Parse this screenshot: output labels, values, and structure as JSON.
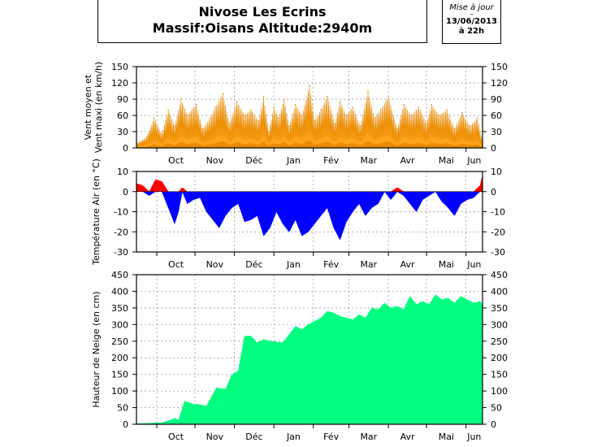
{
  "header": {
    "title_line1": "Nivose Les Ecrins",
    "title_line2": "Massif:Oisans Altitude:2940m"
  },
  "update": {
    "label": "Mise à jour",
    "dash": "–",
    "date": "13/06/2013",
    "time": "à 22h"
  },
  "months": [
    "Oct",
    "Nov",
    "Déc",
    "Jan",
    "Fév",
    "Mar",
    "Avr",
    "Mai",
    "Jun"
  ],
  "colors": {
    "wind": "#e88a00",
    "wind_max": "#ffa31a",
    "temp_pos": "#ff0000",
    "temp_neg": "#0000ff",
    "snow": "#00ff80",
    "grid": "#8c8c8c"
  },
  "chart_data": [
    {
      "type": "area",
      "name": "wind",
      "ylabel_line1": "Vent moyen et",
      "ylabel_line2": "Vent maxi (en km/h)",
      "ylim": [
        0,
        150
      ],
      "yticks": [
        "0",
        "30",
        "60",
        "90",
        "120",
        "150"
      ],
      "x_unit": "day from Sep 15 2012",
      "x": [
        0,
        8,
        14,
        20,
        25,
        30,
        35,
        40,
        47,
        52,
        58,
        62,
        68,
        73,
        79,
        85,
        90,
        96,
        100,
        104,
        108,
        112,
        116,
        120,
        125,
        130,
        136,
        140,
        145,
        150,
        156,
        160,
        165,
        170,
        176,
        182,
        187,
        192,
        198,
        205,
        210,
        216,
        222,
        228,
        232,
        238,
        244,
        250,
        256,
        262,
        268,
        272
      ],
      "values": [
        8,
        20,
        55,
        25,
        70,
        40,
        90,
        60,
        80,
        35,
        55,
        75,
        100,
        45,
        85,
        60,
        70,
        50,
        95,
        30,
        75,
        55,
        90,
        40,
        80,
        60,
        115,
        50,
        70,
        95,
        45,
        85,
        60,
        75,
        40,
        105,
        55,
        70,
        95,
        35,
        80,
        60,
        75,
        45,
        80,
        60,
        70,
        35,
        65,
        40,
        55,
        10
      ]
    },
    {
      "type": "area",
      "name": "temperature",
      "ylabel": "Température Air (en °C)",
      "ylim": [
        -30,
        10
      ],
      "yticks": [
        "-30",
        "-20",
        "-10",
        "0",
        "10"
      ],
      "x": [
        0,
        5,
        10,
        15,
        20,
        25,
        30,
        33,
        36,
        40,
        45,
        50,
        55,
        60,
        65,
        70,
        75,
        80,
        85,
        90,
        95,
        100,
        105,
        110,
        115,
        120,
        125,
        130,
        135,
        140,
        145,
        150,
        155,
        160,
        165,
        170,
        175,
        180,
        185,
        190,
        195,
        200,
        205,
        210,
        215,
        220,
        225,
        230,
        235,
        240,
        245,
        250,
        255,
        260,
        265,
        270,
        272
      ],
      "values": [
        4,
        3,
        -2,
        6,
        5,
        -8,
        -16,
        -10,
        2,
        -6,
        -4,
        -3,
        -10,
        -14,
        -18,
        -12,
        -8,
        -6,
        -15,
        -14,
        -12,
        -22,
        -18,
        -10,
        -16,
        -20,
        -14,
        -22,
        -20,
        -16,
        -12,
        -8,
        -18,
        -24,
        -15,
        -10,
        -6,
        -12,
        -8,
        -6,
        0,
        -4,
        2,
        -2,
        -6,
        -10,
        -4,
        -2,
        0,
        -5,
        -8,
        -12,
        -6,
        -4,
        -3,
        3,
        8
      ]
    },
    {
      "type": "area",
      "name": "snow_depth",
      "ylabel": "Hauteur de Neige (en cm)",
      "ylim": [
        0,
        450
      ],
      "yticks": [
        "0",
        "50",
        "100",
        "150",
        "200",
        "250",
        "300",
        "350",
        "400",
        "450"
      ],
      "x": [
        0,
        10,
        20,
        25,
        30,
        33,
        38,
        45,
        48,
        55,
        63,
        70,
        75,
        80,
        85,
        90,
        95,
        100,
        105,
        115,
        120,
        125,
        130,
        135,
        140,
        145,
        150,
        155,
        160,
        165,
        170,
        175,
        180,
        185,
        190,
        195,
        200,
        205,
        210,
        215,
        220,
        225,
        230,
        235,
        240,
        245,
        250,
        255,
        260,
        265,
        270,
        272
      ],
      "values": [
        2,
        3,
        5,
        10,
        18,
        12,
        70,
        60,
        60,
        55,
        110,
        105,
        150,
        160,
        265,
        265,
        245,
        255,
        250,
        245,
        270,
        295,
        285,
        300,
        310,
        320,
        340,
        335,
        325,
        320,
        315,
        330,
        320,
        350,
        345,
        365,
        350,
        355,
        345,
        385,
        360,
        370,
        360,
        390,
        375,
        380,
        365,
        385,
        375,
        365,
        370,
        360
      ]
    }
  ]
}
